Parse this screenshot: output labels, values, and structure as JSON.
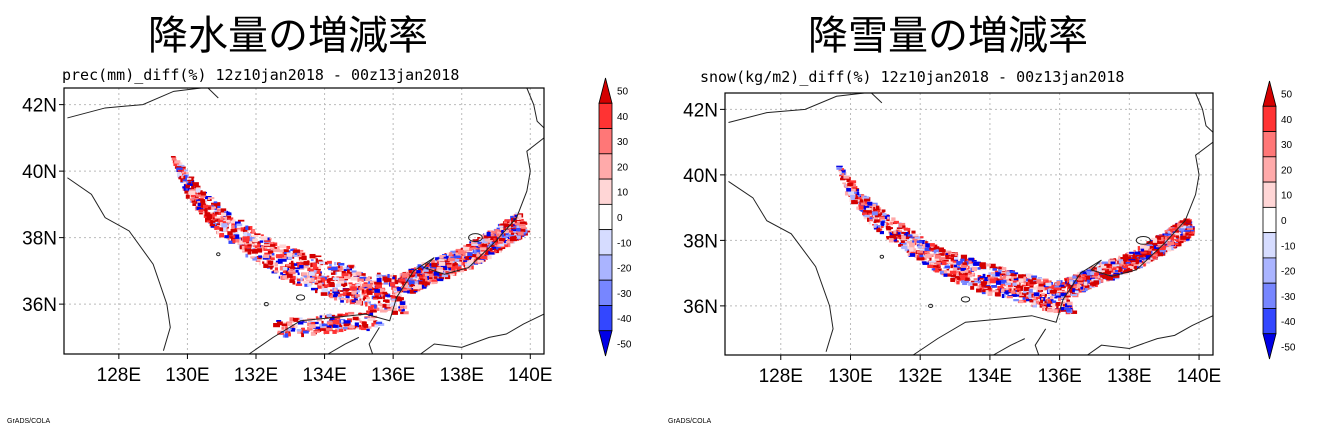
{
  "chart_data": [
    {
      "type": "heatmap",
      "title": "降水量の増減率",
      "subtitle": "prec(mm)_diff(%) 12z10jan2018 - 00z13jan2018",
      "credit": "GrADS/COLA",
      "x_ticks": [
        "128E",
        "130E",
        "132E",
        "134E",
        "136E",
        "138E",
        "140E"
      ],
      "x_values": [
        128,
        130,
        132,
        134,
        136,
        138,
        140
      ],
      "xlim": [
        126.4,
        140.4
      ],
      "y_ticks": [
        "36N",
        "38N",
        "40N",
        "42N"
      ],
      "y_values": [
        36,
        38,
        40,
        42
      ],
      "ylim": [
        34.5,
        42.5
      ],
      "grid": true,
      "colorbar": {
        "levels": [
          50,
          40,
          30,
          20,
          10,
          0,
          -10,
          -20,
          -30,
          -40,
          -50
        ],
        "colors": [
          "#d40000",
          "#ff3333",
          "#ff7777",
          "#ffaaaa",
          "#ffd6d6",
          "#ffffff",
          "#d6dcff",
          "#aab4ff",
          "#7786ff",
          "#3347ff",
          "#0000e6"
        ]
      },
      "features": [
        {
          "kind": "mixed-band",
          "lon": [
            129.7,
            130.5,
            131.5,
            132.5,
            133.5,
            134.5,
            135.5,
            136.2
          ],
          "lat": [
            39.9,
            38.9,
            38.1,
            37.4,
            37.0,
            36.7,
            36.4,
            36.3
          ],
          "width": 0.6
        },
        {
          "kind": "mixed-band",
          "lon": [
            136.2,
            137.0,
            138.0,
            139.0,
            139.7
          ],
          "lat": [
            36.6,
            37.0,
            37.4,
            38.0,
            38.5
          ],
          "width": 0.3
        },
        {
          "kind": "sparse-band",
          "lon": [
            132.5,
            133.5,
            134.5,
            135.5
          ],
          "lat": [
            35.3,
            35.4,
            35.5,
            35.6
          ],
          "width": 0.25
        }
      ]
    },
    {
      "type": "heatmap",
      "title": "降雪量の増減率",
      "subtitle": "snow(kg/m2)_diff(%) 12z10jan2018 - 00z13jan2018",
      "credit": "GrADS/COLA",
      "x_ticks": [
        "128E",
        "130E",
        "132E",
        "134E",
        "136E",
        "138E",
        "140E"
      ],
      "x_values": [
        128,
        130,
        132,
        134,
        136,
        138,
        140
      ],
      "xlim": [
        126.4,
        140.4
      ],
      "y_ticks": [
        "36N",
        "38N",
        "40N",
        "42N"
      ],
      "y_values": [
        36,
        38,
        40,
        42
      ],
      "ylim": [
        34.5,
        42.5
      ],
      "grid": true,
      "colorbar": {
        "levels": [
          50,
          40,
          30,
          20,
          10,
          0,
          -10,
          -20,
          -30,
          -40,
          -50
        ],
        "colors": [
          "#d40000",
          "#ff3333",
          "#ff7777",
          "#ffaaaa",
          "#ffd6d6",
          "#ffffff",
          "#d6dcff",
          "#aab4ff",
          "#7786ff",
          "#3347ff",
          "#0000e6"
        ]
      },
      "features": [
        {
          "kind": "mixed-band",
          "lon": [
            129.7,
            130.5,
            131.5,
            132.5,
            133.5,
            134.5,
            135.5,
            136.2
          ],
          "lat": [
            39.9,
            38.9,
            38.1,
            37.4,
            37.0,
            36.7,
            36.4,
            36.3
          ],
          "width": 0.5
        },
        {
          "kind": "mixed-band",
          "lon": [
            136.2,
            137.0,
            138.0,
            139.0,
            139.7
          ],
          "lat": [
            36.6,
            37.0,
            37.4,
            38.0,
            38.5
          ],
          "width": 0.25
        }
      ]
    }
  ]
}
